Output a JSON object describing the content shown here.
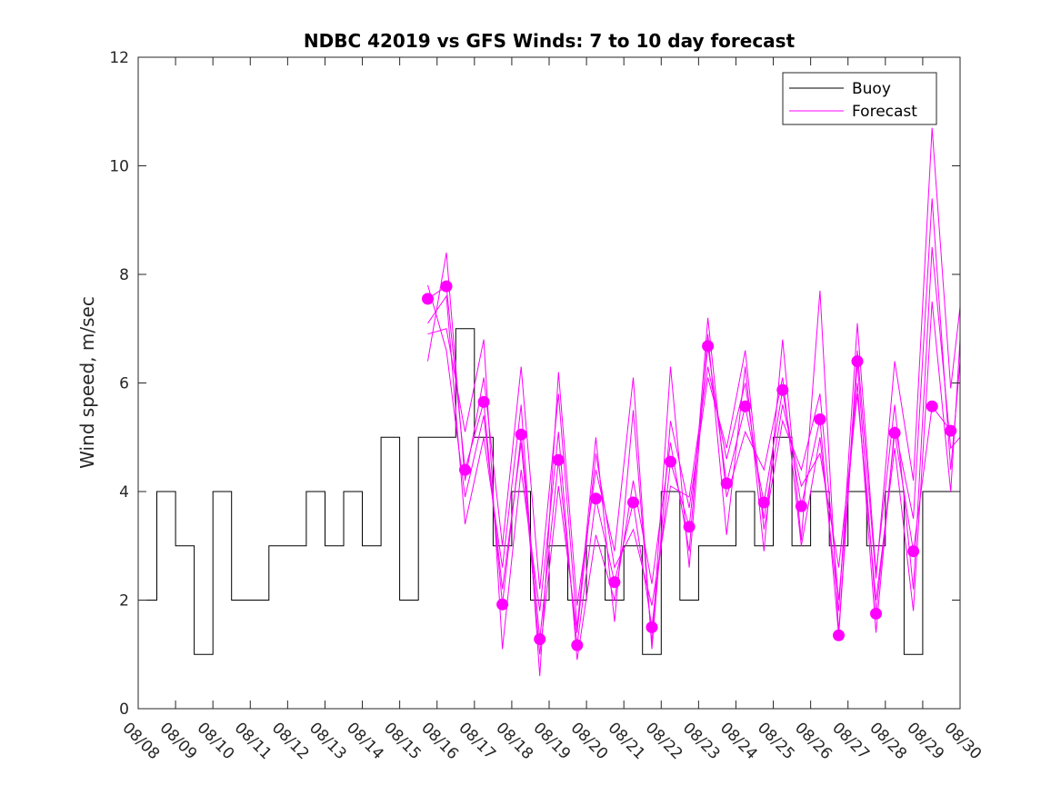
{
  "chart_data": {
    "type": "line",
    "title": "NDBC 42019 vs GFS Winds: 7 to 10 day forecast",
    "xlabel": "",
    "ylabel": "Wind speed, m/sec",
    "xlim": [
      0,
      22
    ],
    "ylim": [
      0,
      12
    ],
    "x_tick_labels": [
      "08/08",
      "08/09",
      "08/10",
      "08/11",
      "08/12",
      "08/13",
      "08/14",
      "08/15",
      "08/16",
      "08/17",
      "08/18",
      "08/19",
      "08/20",
      "08/21",
      "08/22",
      "08/23",
      "08/24",
      "08/25",
      "08/26",
      "08/27",
      "08/28",
      "08/29",
      "08/30"
    ],
    "y_ticks": [
      0,
      2,
      4,
      6,
      8,
      10,
      12
    ],
    "grid": false,
    "legend": {
      "position": "top-right",
      "entries": [
        "Buoy",
        "Forecast"
      ]
    },
    "colors": {
      "buoy": "#000000",
      "forecast": "#ff00ff",
      "axes": "#262626"
    },
    "buoy_series": {
      "name": "Buoy",
      "x_days": [
        0,
        0.5,
        1,
        1.5,
        2,
        2.5,
        3,
        3.5,
        4,
        4.5,
        5,
        5.5,
        6,
        6.5,
        7,
        7.5,
        8,
        8.5,
        9,
        9.5,
        10,
        10.5,
        11,
        11.5,
        12,
        12.5,
        13,
        13.5,
        14,
        14.5,
        15,
        15.5,
        16,
        16.5,
        17,
        17.5,
        18,
        18.5,
        19,
        19.5,
        20,
        20.5,
        21,
        21.5,
        22
      ],
      "values": [
        2,
        4,
        3,
        1,
        4,
        2,
        2,
        3,
        3,
        4,
        3,
        4,
        3,
        5,
        2,
        5,
        5,
        7,
        5,
        3,
        4,
        2,
        3,
        2,
        3,
        2,
        3,
        1,
        4,
        2,
        3,
        3,
        4,
        3,
        5,
        3,
        4,
        3,
        4,
        3,
        4,
        1,
        4,
        4,
        4
      ]
    },
    "forecast_series": [
      {
        "name": "Forecast",
        "x_days": [
          7.75,
          8.25,
          8.75,
          9.25,
          9.75,
          10.25,
          10.75,
          11.25,
          11.75,
          12.25,
          12.75,
          13.25,
          13.75,
          14.25,
          14.75,
          15.25,
          15.75,
          16.25,
          16.75,
          17.25,
          17.75,
          18.25,
          18.75,
          19.25,
          19.75,
          20.25,
          20.75,
          21.25,
          21.75
        ],
        "values": [
          7.55,
          7.78,
          4.4,
          5.65,
          1.92,
          5.05,
          1.28,
          4.58,
          1.17,
          3.87,
          2.33,
          3.8,
          1.5,
          4.55,
          3.35,
          6.68,
          4.15,
          5.57,
          3.8,
          5.87,
          3.73,
          5.33,
          1.35,
          6.4,
          1.75,
          5.08,
          2.9,
          5.57,
          5.12
        ]
      },
      {
        "name": "Forecast",
        "x_days": [
          7.75,
          8.25,
          8.75,
          9.25,
          9.75,
          10.25,
          10.75,
          11.25,
          11.75,
          12.25,
          12.75,
          13.25,
          13.75,
          14.25,
          14.75,
          15.25,
          15.75,
          16.25,
          16.75,
          17.25,
          17.75,
          18.25,
          18.75,
          19.25,
          19.75,
          20.25,
          20.75,
          21.25,
          21.75,
          22
        ],
        "values": [
          6.4,
          8.4,
          4.2,
          6.1,
          3.0,
          6.3,
          2.2,
          5.8,
          1.5,
          5.0,
          1.6,
          5.5,
          1.2,
          6.3,
          2.6,
          6.9,
          3.2,
          6.3,
          2.9,
          6.8,
          3.1,
          7.7,
          1.4,
          6.6,
          2.4,
          6.4,
          4.2,
          10.7,
          5.9,
          7.4
        ]
      },
      {
        "name": "Forecast",
        "x_days": [
          7.75,
          8.25,
          8.75,
          9.25,
          9.75,
          10.25,
          10.75,
          11.25,
          11.75,
          12.25,
          12.75,
          13.25,
          13.75,
          14.25,
          14.75,
          15.25,
          15.75,
          16.25,
          16.75,
          17.25,
          17.75,
          18.25,
          18.75,
          19.25,
          19.75,
          20.25,
          20.75,
          21.25,
          21.75,
          22
        ],
        "values": [
          7.1,
          7.6,
          3.4,
          5.0,
          2.6,
          5.6,
          0.6,
          6.2,
          1.9,
          4.4,
          2.9,
          6.1,
          1.1,
          5.3,
          3.7,
          6.1,
          4.8,
          6.6,
          3.3,
          5.3,
          4.4,
          5.8,
          2.0,
          6.0,
          1.4,
          5.2,
          3.5,
          9.4,
          4.4,
          6.4
        ]
      },
      {
        "name": "Forecast",
        "x_days": [
          7.75,
          8.25,
          8.75,
          9.25,
          9.75,
          10.25,
          10.75,
          11.25,
          11.75,
          12.25,
          12.75,
          13.25,
          13.75,
          14.25,
          14.75,
          15.25,
          15.75,
          16.25,
          16.75,
          17.25,
          17.75,
          18.25,
          18.75,
          19.25,
          19.75,
          20.25,
          20.75,
          21.25,
          21.75,
          22
        ],
        "values": [
          6.9,
          7.0,
          5.1,
          6.8,
          1.1,
          4.4,
          1.8,
          5.1,
          0.9,
          3.2,
          2.0,
          4.2,
          2.3,
          4.9,
          2.9,
          7.2,
          3.9,
          5.1,
          4.4,
          6.1,
          3.0,
          5.0,
          1.8,
          7.1,
          2.5,
          5.6,
          2.2,
          8.5,
          4.8,
          5.0
        ]
      },
      {
        "name": "Forecast",
        "x_days": [
          7.75,
          8.25,
          8.75,
          9.25,
          9.75,
          10.25,
          10.75,
          11.25,
          11.75,
          12.25,
          12.75,
          13.25,
          13.75,
          14.25,
          14.75,
          15.25,
          15.75,
          16.25,
          16.75,
          17.25,
          17.75,
          18.25,
          18.75,
          19.25,
          19.75,
          20.25,
          20.75,
          21.25,
          21.75,
          22
        ],
        "values": [
          7.8,
          6.6,
          3.9,
          5.4,
          2.2,
          4.9,
          1.0,
          4.1,
          1.4,
          4.7,
          2.6,
          3.3,
          1.9,
          4.1,
          3.9,
          6.3,
          4.6,
          6.0,
          3.5,
          5.6,
          4.1,
          4.7,
          2.6,
          5.8,
          2.0,
          4.8,
          1.8,
          7.5,
          4.0,
          6.8
        ]
      }
    ]
  }
}
